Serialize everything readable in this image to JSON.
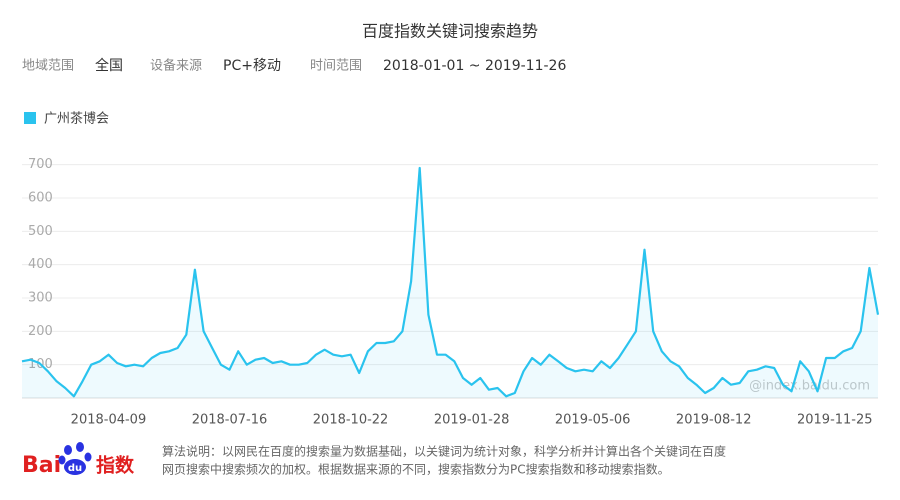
{
  "chart_data": {
    "type": "line",
    "title": "百度指数关键词搜索趋势",
    "filters": [
      {
        "label": "地域范围",
        "value": "全国"
      },
      {
        "label": "设备来源",
        "value": "PC+移动"
      },
      {
        "label": "时间范围",
        "value": "2018-01-01 ~ 2019-11-26"
      }
    ],
    "categories": [
      null,
      null,
      null,
      null,
      null,
      null,
      null,
      null,
      null,
      null,
      "2018-04-09",
      null,
      null,
      null,
      null,
      null,
      null,
      null,
      null,
      null,
      null,
      null,
      null,
      null,
      "2018-07-16",
      null,
      null,
      null,
      null,
      null,
      null,
      null,
      null,
      null,
      null,
      null,
      null,
      null,
      "2018-10-22",
      null,
      null,
      null,
      null,
      null,
      null,
      null,
      null,
      null,
      null,
      null,
      null,
      null,
      "2019-01-28",
      null,
      null,
      null,
      null,
      null,
      null,
      null,
      null,
      null,
      null,
      null,
      null,
      null,
      "2019-05-06",
      null,
      null,
      null,
      null,
      null,
      null,
      null,
      null,
      null,
      null,
      null,
      null,
      null,
      "2019-08-12",
      null,
      null,
      null,
      null,
      null,
      null,
      null,
      null,
      null,
      null,
      null,
      null,
      null,
      "2019-11-25",
      null,
      null,
      null,
      null,
      null
    ],
    "series": [
      {
        "name": "广州茶博会",
        "color": "#2ac3ee",
        "values": [
          110,
          115,
          105,
          80,
          50,
          30,
          5,
          50,
          100,
          110,
          130,
          105,
          95,
          100,
          95,
          120,
          135,
          140,
          150,
          190,
          385,
          200,
          150,
          100,
          85,
          140,
          100,
          115,
          120,
          105,
          110,
          100,
          100,
          105,
          130,
          145,
          130,
          125,
          130,
          75,
          140,
          165,
          165,
          170,
          200,
          350,
          690,
          250,
          130,
          130,
          110,
          60,
          40,
          60,
          25,
          30,
          5,
          15,
          80,
          120,
          100,
          130,
          110,
          90,
          80,
          85,
          80,
          110,
          90,
          120,
          160,
          200,
          445,
          200,
          140,
          110,
          95,
          60,
          40,
          15,
          30,
          60,
          40,
          45,
          80,
          85,
          95,
          90,
          40,
          20,
          110,
          80,
          20,
          120,
          120,
          140,
          150,
          200,
          390,
          250
        ]
      }
    ],
    "ylim": [
      0,
      750
    ],
    "yticks": [
      100,
      200,
      300,
      400,
      500,
      600,
      700
    ],
    "grid": true,
    "legend": "top-left",
    "watermark": "@index.baidu.com",
    "logo": [
      "Bai",
      "du",
      "指数"
    ],
    "note": [
      "算法说明：以网民在百度的搜索量为数据基础，以关键词为统计对象，科学分析并计算出各个关键词在百度",
      "网页搜索中搜索频次的加权。根据数据来源的不同，搜索指数分为PC搜索指数和移动搜索指数。"
    ]
  }
}
